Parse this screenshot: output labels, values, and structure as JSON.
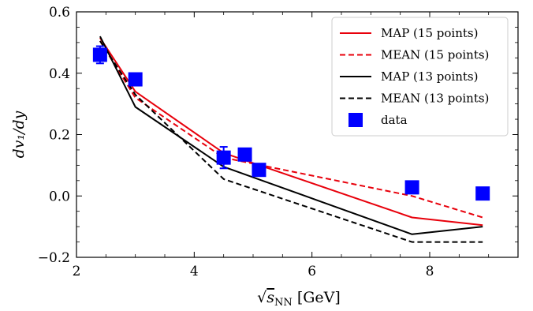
{
  "chart_data": {
    "type": "line",
    "xlabel": "√s_NN [GeV]",
    "xlabel_parts": {
      "root_symbol": "√",
      "var": "s",
      "sub": "NN",
      "unit": "[GeV]"
    },
    "ylabel": "dv₁/dy",
    "xlim": [
      2,
      9.5
    ],
    "ylim": [
      -0.2,
      0.6
    ],
    "xticks": [
      2,
      4,
      6,
      8
    ],
    "xtick_labels": [
      "2",
      "4",
      "6",
      "8"
    ],
    "yticks": [
      -0.2,
      0.0,
      0.2,
      0.4,
      0.6
    ],
    "ytick_labels": [
      "−0.2",
      "0.0",
      "0.2",
      "0.4",
      "0.6"
    ],
    "grid": false,
    "legend_position": "top-right",
    "series": [
      {
        "name": "MAP (15 points)",
        "color": "#e8000b",
        "dash": "solid",
        "x": [
          2.4,
          3.0,
          4.5,
          7.7,
          8.9
        ],
        "y": [
          0.515,
          0.34,
          0.14,
          -0.07,
          -0.095
        ]
      },
      {
        "name": "MEAN (15 points)",
        "color": "#e8000b",
        "dash": "dashed",
        "x": [
          2.4,
          3.0,
          4.5,
          7.7,
          8.9
        ],
        "y": [
          0.505,
          0.32,
          0.125,
          0.0,
          -0.07
        ]
      },
      {
        "name": "MAP (13 points)",
        "color": "#000000",
        "dash": "solid",
        "x": [
          2.4,
          3.0,
          4.5,
          7.7,
          8.9
        ],
        "y": [
          0.52,
          0.29,
          0.095,
          -0.125,
          -0.1
        ]
      },
      {
        "name": "MEAN (13 points)",
        "color": "#000000",
        "dash": "dashed",
        "x": [
          2.4,
          3.0,
          4.5,
          7.7,
          8.9
        ],
        "y": [
          0.505,
          0.33,
          0.055,
          -0.15,
          -0.15
        ]
      }
    ],
    "data_points": {
      "name": "data",
      "color": "#0000ff",
      "x": [
        2.4,
        3.0,
        4.5,
        4.86,
        5.1,
        7.7,
        8.9
      ],
      "y": [
        0.46,
        0.38,
        0.125,
        0.135,
        0.085,
        0.028,
        0.008
      ],
      "yerr": [
        0.028,
        0.012,
        0.035,
        0.015,
        0.012,
        0.012,
        0.008
      ]
    }
  }
}
